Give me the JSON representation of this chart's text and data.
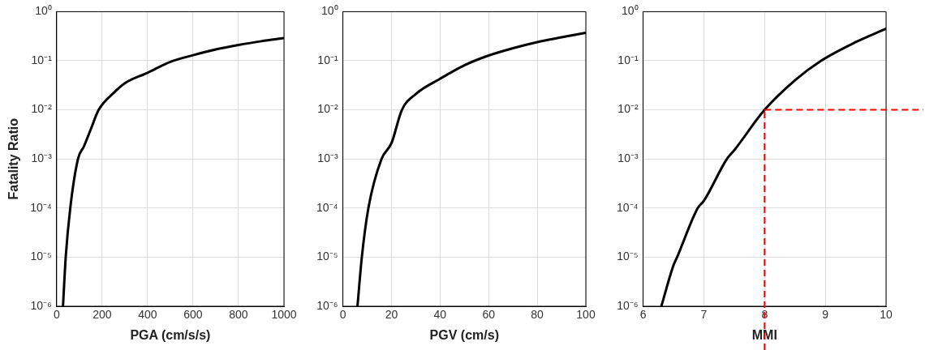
{
  "chart_data": [
    {
      "type": "line",
      "xlabel": "PGA (cm/s/s)",
      "ylabel": "Fatality Ratio",
      "log": "y",
      "grid": true,
      "legend": false,
      "marker": "none",
      "line_style": "solid",
      "xlim": [
        0,
        1000
      ],
      "xticks": [
        0,
        200,
        400,
        600,
        800,
        1000
      ],
      "ylim": [
        1e-06,
        1
      ],
      "yticks": [
        {
          "value": 1e-06,
          "label": "10⁻⁶"
        },
        {
          "value": 1e-05,
          "label": "10⁻⁵"
        },
        {
          "value": 0.0001,
          "label": "10⁻⁴"
        },
        {
          "value": 0.001,
          "label": "10⁻³"
        },
        {
          "value": 0.01,
          "label": "10⁻²"
        },
        {
          "value": 0.1,
          "label": "10⁻¹"
        },
        {
          "value": 1,
          "label": "10⁰"
        }
      ],
      "x": [
        28,
        40,
        60,
        94,
        120,
        150,
        185,
        250,
        300,
        400,
        500,
        600,
        700,
        800,
        900,
        1000
      ],
      "series": [
        {
          "color": "#000000",
          "values": [
            1e-06,
            1e-05,
            0.0001,
            0.001,
            0.0018,
            0.004,
            0.01,
            0.022,
            0.035,
            0.057,
            0.095,
            0.13,
            0.17,
            0.21,
            0.25,
            0.29
          ]
        }
      ]
    },
    {
      "type": "line",
      "xlabel": "PGV (cm/s)",
      "log": "y",
      "grid": true,
      "legend": false,
      "marker": "none",
      "line_style": "solid",
      "xlim": [
        0,
        100
      ],
      "xticks": [
        0,
        20,
        40,
        60,
        80,
        100
      ],
      "ylim": [
        1e-06,
        1
      ],
      "yticks": [
        {
          "value": 1e-06,
          "label": "10⁻⁶"
        },
        {
          "value": 1e-05,
          "label": "10⁻⁵"
        },
        {
          "value": 0.0001,
          "label": "10⁻⁴"
        },
        {
          "value": 0.001,
          "label": "10⁻³"
        },
        {
          "value": 0.01,
          "label": "10⁻²"
        },
        {
          "value": 0.1,
          "label": "10⁻¹"
        },
        {
          "value": 1,
          "label": "10⁰"
        }
      ],
      "x": [
        6,
        7.8,
        10.5,
        15.9,
        20,
        24.3,
        30,
        40,
        50,
        60,
        70,
        80,
        90,
        100
      ],
      "series": [
        {
          "color": "#000000",
          "values": [
            1e-06,
            1e-05,
            0.0001,
            0.001,
            0.0021,
            0.01,
            0.021,
            0.043,
            0.081,
            0.128,
            0.18,
            0.24,
            0.3,
            0.37
          ]
        }
      ]
    },
    {
      "type": "line",
      "xlabel": "MMI",
      "log": "y",
      "grid": true,
      "legend": false,
      "marker": "none",
      "line_style": "solid",
      "xlim": [
        6,
        10
      ],
      "xticks": [
        6,
        7,
        8,
        9,
        10
      ],
      "ylim": [
        1e-06,
        1
      ],
      "yticks": [
        {
          "value": 1e-06,
          "label": "10⁻⁶"
        },
        {
          "value": 1e-05,
          "label": "10⁻⁵"
        },
        {
          "value": 0.0001,
          "label": "10⁻⁴"
        },
        {
          "value": 0.001,
          "label": "10⁻³"
        },
        {
          "value": 0.01,
          "label": "10⁻²"
        },
        {
          "value": 0.1,
          "label": "10⁻¹"
        },
        {
          "value": 1,
          "label": "10⁰"
        }
      ],
      "x": [
        6.3,
        6.5,
        6.56,
        6.9,
        7,
        7.38,
        7.5,
        8,
        8.5,
        8.93,
        9.5,
        10
      ],
      "series": [
        {
          "color": "#000000",
          "values": [
            1e-06,
            6.8e-06,
            1e-05,
            0.0001,
            0.00014,
            0.001,
            0.0015,
            0.01,
            0.04,
            0.1,
            0.24,
            0.45
          ]
        }
      ],
      "ref_lines": [
        {
          "axis": "x",
          "value": 8,
          "color": "#ff0000",
          "line_style": "dashed"
        },
        {
          "axis": "y",
          "value": 0.01,
          "color": "#ff0000",
          "line_style": "dashed"
        }
      ]
    }
  ]
}
